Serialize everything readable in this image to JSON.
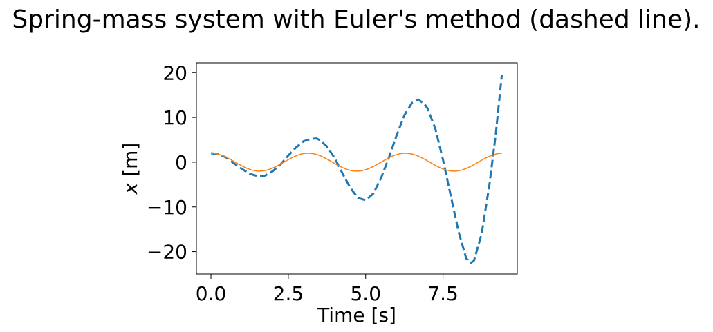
{
  "chart_data": {
    "type": "line",
    "title": "Spring-mass system with Euler's method (dashed line).",
    "xlabel": "Time [s]",
    "ylabel_italic": "x",
    "ylabel_unit": "[m]",
    "xlim": [
      -0.47,
      9.9
    ],
    "ylim": [
      -25,
      22.2
    ],
    "xticks": [
      0.0,
      2.5,
      5.0,
      7.5
    ],
    "xtick_labels": [
      "0.0",
      "2.5",
      "5.0",
      "7.5"
    ],
    "yticks": [
      20,
      10,
      0,
      -10,
      -20
    ],
    "ytick_labels": [
      "20",
      "10",
      "0",
      "−10",
      "−20"
    ],
    "grid": false,
    "series": [
      {
        "style": "dashed",
        "color": "#1f77b4",
        "x": [
          0.0,
          0.25,
          0.5,
          0.75,
          1.0,
          1.25,
          1.5,
          1.75,
          2.0,
          2.25,
          2.5,
          2.75,
          3.0,
          3.25,
          3.4,
          3.5,
          3.75,
          4.0,
          4.25,
          4.5,
          4.75,
          5.0,
          5.25,
          5.5,
          5.75,
          6.0,
          6.25,
          6.5,
          6.7,
          6.9,
          7.0,
          7.25,
          7.5,
          7.75,
          8.0,
          8.25,
          8.4,
          8.5,
          8.75,
          9.0,
          9.2,
          9.4
        ],
        "y": [
          2.0,
          1.8,
          1.0,
          -0.3,
          -1.5,
          -2.6,
          -3.1,
          -3.0,
          -2.0,
          -0.5,
          1.5,
          3.3,
          4.7,
          5.2,
          5.3,
          5.0,
          3.5,
          0.9,
          -2.5,
          -5.7,
          -8.0,
          -8.5,
          -7.0,
          -3.5,
          1.0,
          6.0,
          10.5,
          13.3,
          14.0,
          13.0,
          12.0,
          7.5,
          0.5,
          -7.5,
          -15.5,
          -21.5,
          -22.5,
          -22.0,
          -16.0,
          -5.0,
          6.0,
          19.5
        ]
      },
      {
        "style": "solid",
        "color": "#ff7f0e",
        "amplitude": 2,
        "period": 3.1416,
        "x_range": [
          0.0,
          9.4
        ]
      }
    ]
  }
}
